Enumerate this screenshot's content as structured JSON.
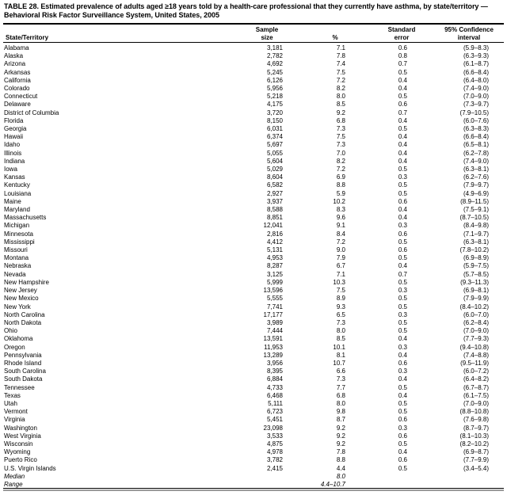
{
  "title": "TABLE 28. Estimated prevalence of adults aged ≥18 years told by a health-care professional that they currently have asthma, by state/territory — Behavioral Risk Factor Surveillance System, United States, 2005",
  "header": {
    "state": "State/Territory",
    "sample": [
      "Sample",
      "size"
    ],
    "pct": "%",
    "se": [
      "Standard",
      "error"
    ],
    "ci": [
      "95% Confidence",
      "interval"
    ]
  },
  "rows": [
    [
      "Alabama",
      "3,181",
      "7.1",
      "0.6",
      "(5.9–8.3)"
    ],
    [
      "Alaska",
      "2,782",
      "7.8",
      "0.8",
      "(6.3–9.3)"
    ],
    [
      "Arizona",
      "4,692",
      "7.4",
      "0.7",
      "(6.1–8.7)"
    ],
    [
      "Arkansas",
      "5,245",
      "7.5",
      "0.5",
      "(6.6–8.4)"
    ],
    [
      "California",
      "6,126",
      "7.2",
      "0.4",
      "(6.4–8.0)"
    ],
    [
      "Colorado",
      "5,956",
      "8.2",
      "0.4",
      "(7.4–9.0)"
    ],
    [
      "Connecticut",
      "5,218",
      "8.0",
      "0.5",
      "(7.0–9.0)"
    ],
    [
      "Delaware",
      "4,175",
      "8.5",
      "0.6",
      "(7.3–9.7)"
    ],
    [
      "District of Columbia",
      "3,720",
      "9.2",
      "0.7",
      "(7.9–10.5)"
    ],
    [
      "Florida",
      "8,150",
      "6.8",
      "0.4",
      "(6.0–7.6)"
    ],
    [
      "Georgia",
      "6,031",
      "7.3",
      "0.5",
      "(6.3–8.3)"
    ],
    [
      "Hawaii",
      "6,374",
      "7.5",
      "0.4",
      "(6.6–8.4)"
    ],
    [
      "Idaho",
      "5,697",
      "7.3",
      "0.4",
      "(6.5–8.1)"
    ],
    [
      "Illinois",
      "5,055",
      "7.0",
      "0.4",
      "(6.2–7.8)"
    ],
    [
      "Indiana",
      "5,604",
      "8.2",
      "0.4",
      "(7.4–9.0)"
    ],
    [
      "Iowa",
      "5,029",
      "7.2",
      "0.5",
      "(6.3–8.1)"
    ],
    [
      "Kansas",
      "8,604",
      "6.9",
      "0.3",
      "(6.2–7.6)"
    ],
    [
      "Kentucky",
      "6,582",
      "8.8",
      "0.5",
      "(7.9–9.7)"
    ],
    [
      "Louisiana",
      "2,927",
      "5.9",
      "0.5",
      "(4.9–6.9)"
    ],
    [
      "Maine",
      "3,937",
      "10.2",
      "0.6",
      "(8.9–11.5)"
    ],
    [
      "Maryland",
      "8,588",
      "8.3",
      "0.4",
      "(7.5–9.1)"
    ],
    [
      "Massachusetts",
      "8,851",
      "9.6",
      "0.4",
      "(8.7–10.5)"
    ],
    [
      "Michigan",
      "12,041",
      "9.1",
      "0.3",
      "(8.4–9.8)"
    ],
    [
      "Minnesota",
      "2,816",
      "8.4",
      "0.6",
      "(7.1–9.7)"
    ],
    [
      "Mississippi",
      "4,412",
      "7.2",
      "0.5",
      "(6.3–8.1)"
    ],
    [
      "Missouri",
      "5,131",
      "9.0",
      "0.6",
      "(7.8–10.2)"
    ],
    [
      "Montana",
      "4,953",
      "7.9",
      "0.5",
      "(6.9–8.9)"
    ],
    [
      "Nebraska",
      "8,287",
      "6.7",
      "0.4",
      "(5.9–7.5)"
    ],
    [
      "Nevada",
      "3,125",
      "7.1",
      "0.7",
      "(5.7–8.5)"
    ],
    [
      "New Hampshire",
      "5,999",
      "10.3",
      "0.5",
      "(9.3–11.3)"
    ],
    [
      "New Jersey",
      "13,596",
      "7.5",
      "0.3",
      "(6.9–8.1)"
    ],
    [
      "New Mexico",
      "5,555",
      "8.9",
      "0.5",
      "(7.9–9.9)"
    ],
    [
      "New York",
      "7,741",
      "9.3",
      "0.5",
      "(8.4–10.2)"
    ],
    [
      "North Carolina",
      "17,177",
      "6.5",
      "0.3",
      "(6.0–7.0)"
    ],
    [
      "North Dakota",
      "3,989",
      "7.3",
      "0.5",
      "(6.2–8.4)"
    ],
    [
      "Ohio",
      "7,444",
      "8.0",
      "0.5",
      "(7.0–9.0)"
    ],
    [
      "Oklahoma",
      "13,591",
      "8.5",
      "0.4",
      "(7.7–9.3)"
    ],
    [
      "Oregon",
      "11,953",
      "10.1",
      "0.3",
      "(9.4–10.8)"
    ],
    [
      "Pennsylvania",
      "13,289",
      "8.1",
      "0.4",
      "(7.4–8.8)"
    ],
    [
      "Rhode Island",
      "3,956",
      "10.7",
      "0.6",
      "(9.5–11.9)"
    ],
    [
      "South Carolina",
      "8,395",
      "6.6",
      "0.3",
      "(6.0–7.2)"
    ],
    [
      "South Dakota",
      "6,884",
      "7.3",
      "0.4",
      "(6.4–8.2)"
    ],
    [
      "Tennessee",
      "4,733",
      "7.7",
      "0.5",
      "(6.7–8.7)"
    ],
    [
      "Texas",
      "6,468",
      "6.8",
      "0.4",
      "(6.1–7.5)"
    ],
    [
      "Utah",
      "5,111",
      "8.0",
      "0.5",
      "(7.0–9.0)"
    ],
    [
      "Vermont",
      "6,723",
      "9.8",
      "0.5",
      "(8.8–10.8)"
    ],
    [
      "Virginia",
      "5,451",
      "8.7",
      "0.6",
      "(7.6–9.8)"
    ],
    [
      "Washington",
      "23,098",
      "9.2",
      "0.3",
      "(8.7–9.7)"
    ],
    [
      "West Virginia",
      "3,533",
      "9.2",
      "0.6",
      "(8.1–10.3)"
    ],
    [
      "Wisconsin",
      "4,875",
      "9.2",
      "0.5",
      "(8.2–10.2)"
    ],
    [
      "Wyoming",
      "4,978",
      "7.8",
      "0.4",
      "(6.9–8.7)"
    ],
    [
      "Puerto Rico",
      "3,782",
      "8.8",
      "0.6",
      "(7.7–9.9)"
    ],
    [
      "U.S. Virgin Islands",
      "2,415",
      "4.4",
      "0.5",
      "(3.4–5.4)"
    ]
  ],
  "summary": [
    [
      "Median",
      "8.0"
    ],
    [
      "Range",
      "4.4–10.7"
    ]
  ]
}
